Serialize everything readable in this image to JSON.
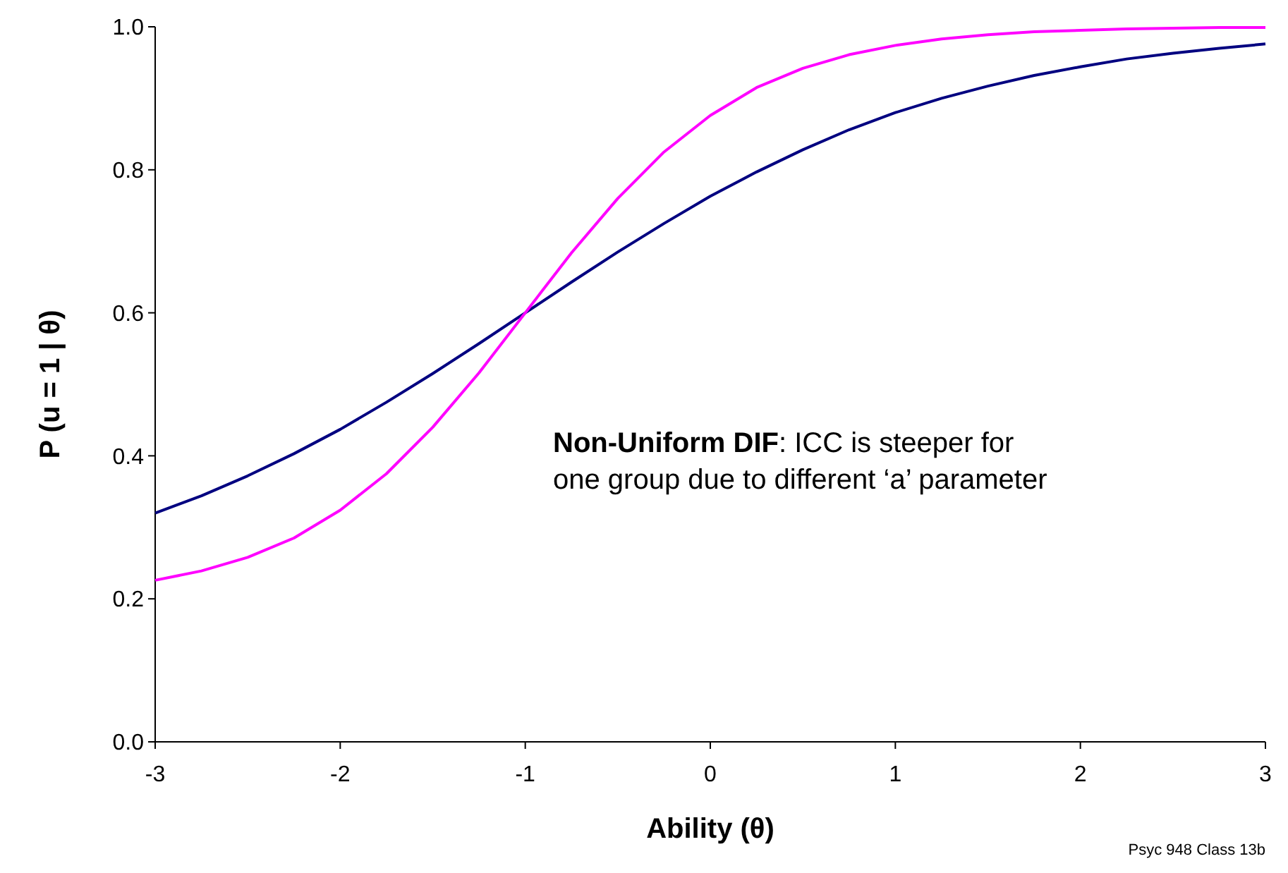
{
  "chart_data": {
    "type": "line",
    "xlabel": "Ability (θ)",
    "ylabel": "P (u = 1 | θ)",
    "x": [
      -3,
      -2.75,
      -2.5,
      -2.25,
      -2,
      -1.75,
      -1.5,
      -1.25,
      -1,
      -0.75,
      -0.5,
      -0.25,
      0,
      0.25,
      0.5,
      0.75,
      1,
      1.25,
      1.5,
      1.75,
      2,
      2.25,
      2.5,
      2.75,
      3
    ],
    "series": [
      {
        "color": "#000080",
        "values": [
          0.32,
          0.344,
          0.372,
          0.403,
          0.437,
          0.475,
          0.515,
          0.557,
          0.6,
          0.643,
          0.685,
          0.725,
          0.763,
          0.797,
          0.828,
          0.856,
          0.88,
          0.9,
          0.917,
          0.932,
          0.944,
          0.955,
          0.963,
          0.97,
          0.976
        ]
      },
      {
        "color": "#ff00ff",
        "values": [
          0.226,
          0.239,
          0.258,
          0.285,
          0.324,
          0.375,
          0.44,
          0.516,
          0.6,
          0.684,
          0.76,
          0.825,
          0.876,
          0.915,
          0.942,
          0.961,
          0.974,
          0.983,
          0.989,
          0.993,
          0.995,
          0.997,
          0.998,
          0.999,
          0.999
        ]
      }
    ],
    "xlim": [
      -3,
      3
    ],
    "xticks": [
      -3,
      -2,
      -1,
      0,
      1,
      2,
      3
    ],
    "ylim": [
      0,
      1
    ],
    "yticks": [
      {
        "value": 0,
        "label": "0.0"
      },
      {
        "value": 0.2,
        "label": "0.2"
      },
      {
        "value": 0.4,
        "label": "0.4"
      },
      {
        "value": 0.6,
        "label": "0.6"
      },
      {
        "value": 0.8,
        "label": "0.8"
      },
      {
        "value": 1,
        "label": "1.0"
      }
    ],
    "grid": false,
    "marker": "none",
    "line_style": "solid",
    "annotations": [
      "Non-Uniform DIF: ICC is steeper for one group due to different ‘a’ parameter",
      "Psyc 948 Class 13b"
    ]
  }
}
